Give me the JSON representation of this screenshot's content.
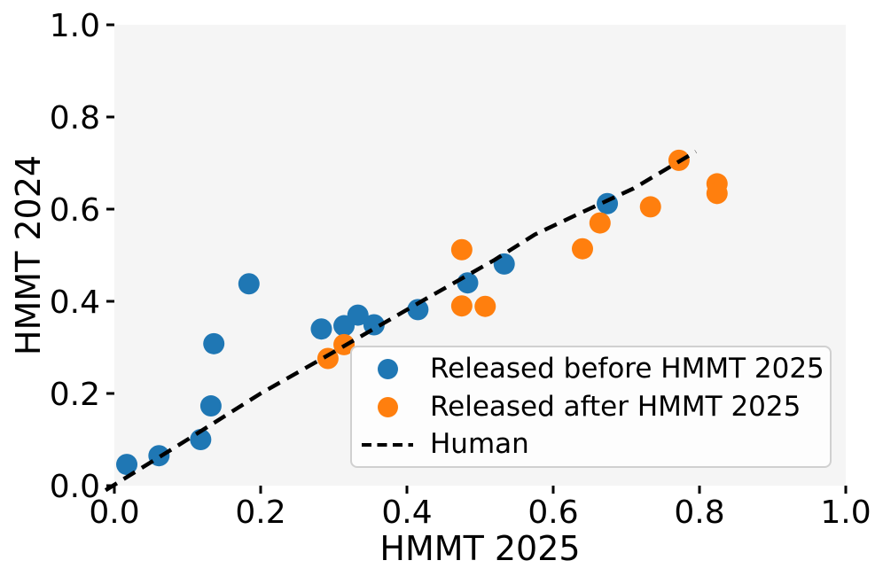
{
  "figure": {
    "background": "#ffffff",
    "plot_background": "#f5f5f5"
  },
  "chart_data": {
    "type": "scatter",
    "title": "",
    "xlabel": "HMMT 2025",
    "ylabel": "HMMT 2024",
    "xlim": [
      0,
      1
    ],
    "ylim": [
      0,
      1
    ],
    "grid": false,
    "xticks": [
      0.0,
      0.2,
      0.4,
      0.6,
      0.8,
      1.0
    ],
    "yticks": [
      0.0,
      0.2,
      0.4,
      0.6,
      0.8,
      1.0
    ],
    "xtick_labels": [
      "0.0",
      "0.2",
      "0.4",
      "0.6",
      "0.8",
      "1.0"
    ],
    "ytick_labels": [
      "0.0",
      "0.2",
      "0.4",
      "0.6",
      "0.8",
      "1.0"
    ],
    "legend_position": "lower right",
    "series": [
      {
        "name": "Released before HMMT 2025",
        "type": "scatter",
        "color": "#1f77b4",
        "points": [
          [
            0.017,
            0.046
          ],
          [
            0.061,
            0.065
          ],
          [
            0.118,
            0.1
          ],
          [
            0.132,
            0.173
          ],
          [
            0.136,
            0.308
          ],
          [
            0.184,
            0.438
          ],
          [
            0.283,
            0.34
          ],
          [
            0.314,
            0.347
          ],
          [
            0.333,
            0.37
          ],
          [
            0.355,
            0.349
          ],
          [
            0.415,
            0.382
          ],
          [
            0.483,
            0.44
          ],
          [
            0.533,
            0.481
          ],
          [
            0.674,
            0.612
          ]
        ]
      },
      {
        "name": "Released after HMMT 2025",
        "type": "scatter",
        "color": "#ff7f0e",
        "points": [
          [
            0.292,
            0.276
          ],
          [
            0.314,
            0.306
          ],
          [
            0.475,
            0.512
          ],
          [
            0.475,
            0.39
          ],
          [
            0.507,
            0.389
          ],
          [
            0.64,
            0.514
          ],
          [
            0.664,
            0.57
          ],
          [
            0.733,
            0.605
          ],
          [
            0.772,
            0.706
          ],
          [
            0.824,
            0.655
          ],
          [
            0.824,
            0.634
          ]
        ]
      },
      {
        "name": "Human",
        "type": "line",
        "style": "dashed",
        "color": "#000000",
        "points": [
          [
            -0.012,
            -0.01
          ],
          [
            0.1,
            0.1
          ],
          [
            0.2,
            0.2
          ],
          [
            0.3,
            0.29
          ],
          [
            0.42,
            0.4
          ],
          [
            0.52,
            0.49
          ],
          [
            0.575,
            0.545
          ],
          [
            0.635,
            0.59
          ],
          [
            0.71,
            0.645
          ],
          [
            0.795,
            0.725
          ]
        ]
      }
    ]
  }
}
